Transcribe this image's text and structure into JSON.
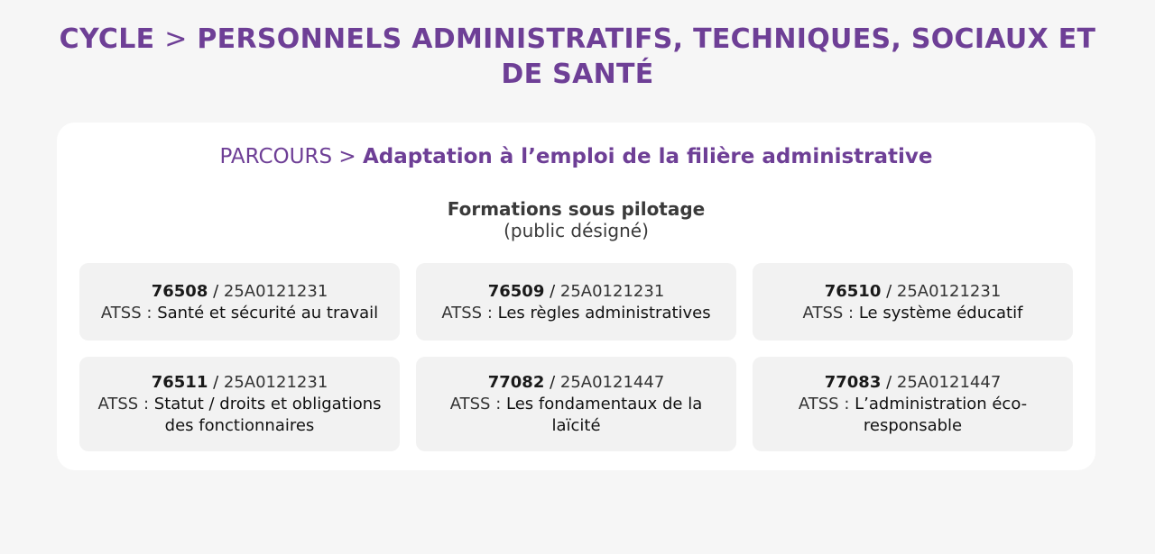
{
  "header": {
    "cycle_label": "CYCLE",
    "separator": ">",
    "cycle_title": "PERSONNELS ADMINISTRATIFS, TECHNIQUES, SOCIAUX ET DE SANTÉ"
  },
  "parcours": {
    "label": "PARCOURS",
    "separator": ">",
    "name": "Adaptation à l’emploi de la filière administrative"
  },
  "section": {
    "title": "Formations sous pilotage",
    "subtitle": "(public désigné)"
  },
  "trainings": [
    {
      "code": "76508",
      "ref": "25A0121231",
      "prefix": "ATSS :",
      "title": "Santé et sécurité au travail"
    },
    {
      "code": "76509",
      "ref": "25A0121231",
      "prefix": "ATSS :",
      "title": "Les règles administratives"
    },
    {
      "code": "76510",
      "ref": "25A0121231",
      "prefix": "ATSS :",
      "title": "Le système éducatif"
    },
    {
      "code": "76511",
      "ref": "25A0121231",
      "prefix": "ATSS :",
      "title": "Statut / droits et obligations des fonctionnaires"
    },
    {
      "code": "77082",
      "ref": "25A0121447",
      "prefix": "ATSS :",
      "title": "Les fondamentaux de la laïcité"
    },
    {
      "code": "77083",
      "ref": "25A0121447",
      "prefix": "ATSS :",
      "title": "L’administration éco-responsable"
    }
  ],
  "colors": {
    "accent": "#6e3f96",
    "page_background": "#f6f6f6",
    "card_background": "#ffffff",
    "tile_background": "#f2f2f2"
  }
}
